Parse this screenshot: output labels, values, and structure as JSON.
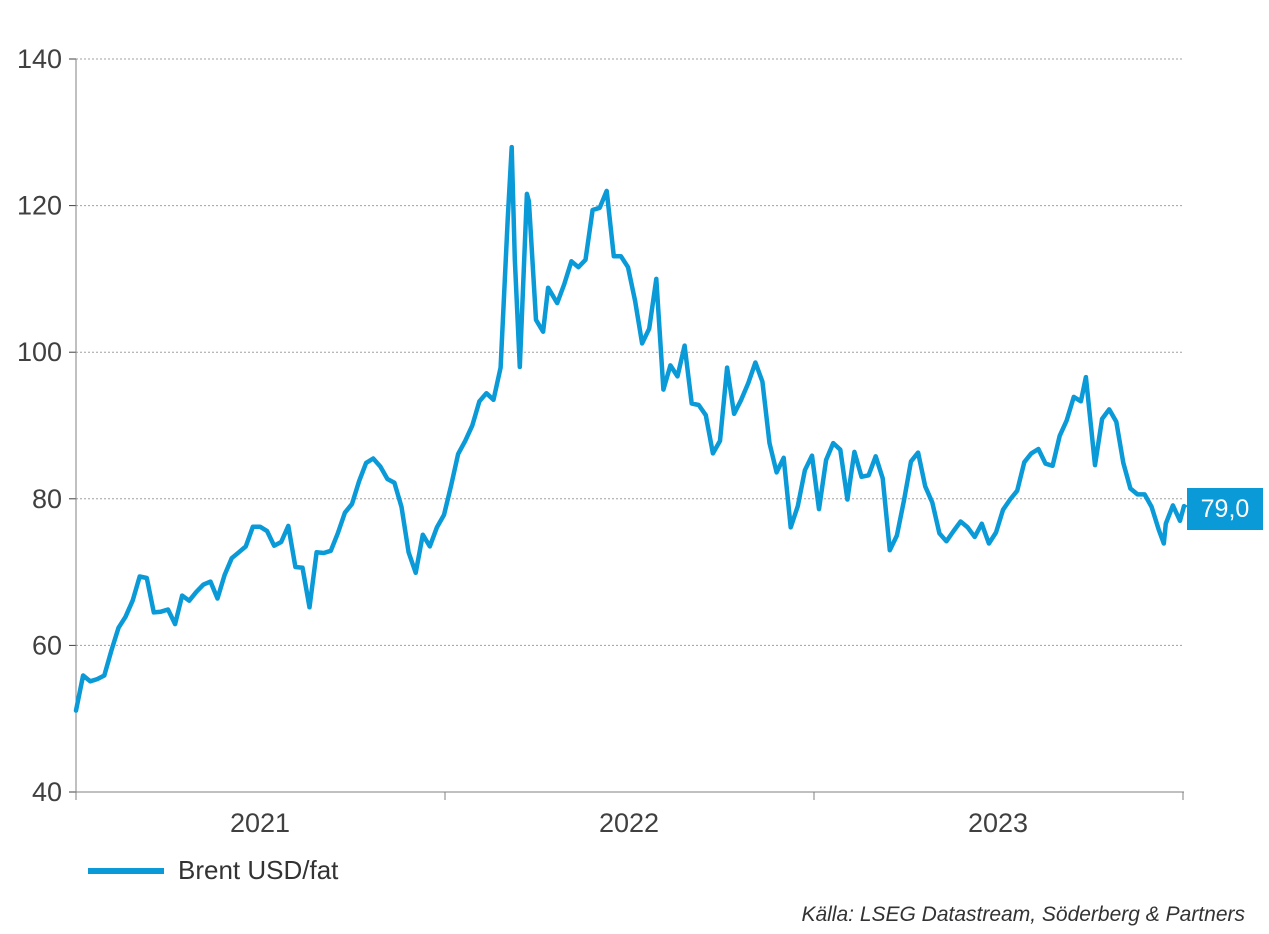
{
  "colors": {
    "series": "#0a9ad8",
    "grid": "#a0a0a0",
    "axis": "#404040"
  },
  "legend": {
    "label": "Brent USD/fat"
  },
  "source": "Källa: LSEG Datastream, Söderberg & Partners",
  "last_value_label": "79,0",
  "chart_data": {
    "type": "line",
    "title": "",
    "xlabel": "",
    "ylabel": "",
    "ylim": [
      40,
      140
    ],
    "yticks": [
      40,
      60,
      80,
      100,
      120,
      140
    ],
    "xlim": [
      "2021-01-01",
      "2024-01-02"
    ],
    "xticks": [
      "2021-01-01",
      "2022-01-01",
      "2023-01-01",
      "2024-01-01"
    ],
    "x_tick_labels": [
      {
        "label": "2021",
        "at": "2021-07-02"
      },
      {
        "label": "2022",
        "at": "2022-07-02"
      },
      {
        "label": "2023",
        "at": "2023-07-02"
      }
    ],
    "grid": "horizontal dotted",
    "legend_position": "bottom-left",
    "series": [
      {
        "name": "Brent USD/fat",
        "points": [
          [
            "2021-01-01",
            51.1
          ],
          [
            "2021-01-08",
            55.9
          ],
          [
            "2021-01-15",
            55.1
          ],
          [
            "2021-01-22",
            55.4
          ],
          [
            "2021-01-29",
            55.9
          ],
          [
            "2021-02-05",
            59.3
          ],
          [
            "2021-02-12",
            62.4
          ],
          [
            "2021-02-19",
            63.9
          ],
          [
            "2021-02-26",
            66.1
          ],
          [
            "2021-03-05",
            69.4
          ],
          [
            "2021-03-12",
            69.2
          ],
          [
            "2021-03-19",
            64.5
          ],
          [
            "2021-03-26",
            64.6
          ],
          [
            "2021-04-02",
            64.9
          ],
          [
            "2021-04-09",
            62.9
          ],
          [
            "2021-04-16",
            66.8
          ],
          [
            "2021-04-23",
            66.1
          ],
          [
            "2021-04-30",
            67.3
          ],
          [
            "2021-05-07",
            68.3
          ],
          [
            "2021-05-14",
            68.7
          ],
          [
            "2021-05-21",
            66.4
          ],
          [
            "2021-05-28",
            69.6
          ],
          [
            "2021-06-04",
            71.9
          ],
          [
            "2021-06-11",
            72.7
          ],
          [
            "2021-06-18",
            73.5
          ],
          [
            "2021-06-25",
            76.2
          ],
          [
            "2021-07-02",
            76.2
          ],
          [
            "2021-07-09",
            75.6
          ],
          [
            "2021-07-16",
            73.6
          ],
          [
            "2021-07-23",
            74.1
          ],
          [
            "2021-07-30",
            76.3
          ],
          [
            "2021-08-06",
            70.7
          ],
          [
            "2021-08-13",
            70.6
          ],
          [
            "2021-08-20",
            65.2
          ],
          [
            "2021-08-27",
            72.7
          ],
          [
            "2021-09-03",
            72.6
          ],
          [
            "2021-09-10",
            72.9
          ],
          [
            "2021-09-17",
            75.3
          ],
          [
            "2021-09-24",
            78.1
          ],
          [
            "2021-10-01",
            79.3
          ],
          [
            "2021-10-08",
            82.4
          ],
          [
            "2021-10-15",
            84.9
          ],
          [
            "2021-10-22",
            85.5
          ],
          [
            "2021-10-29",
            84.4
          ],
          [
            "2021-11-05",
            82.7
          ],
          [
            "2021-11-12",
            82.2
          ],
          [
            "2021-11-19",
            78.9
          ],
          [
            "2021-11-26",
            72.7
          ],
          [
            "2021-12-03",
            69.9
          ],
          [
            "2021-12-10",
            75.1
          ],
          [
            "2021-12-17",
            73.5
          ],
          [
            "2021-12-24",
            76.1
          ],
          [
            "2021-12-31",
            77.8
          ],
          [
            "2022-01-07",
            81.8
          ],
          [
            "2022-01-14",
            86.1
          ],
          [
            "2022-01-21",
            87.9
          ],
          [
            "2022-01-28",
            90.0
          ],
          [
            "2022-02-04",
            93.3
          ],
          [
            "2022-02-11",
            94.4
          ],
          [
            "2022-02-18",
            93.5
          ],
          [
            "2022-02-25",
            97.9
          ],
          [
            "2022-03-04",
            118.1
          ],
          [
            "2022-03-08",
            127.98
          ],
          [
            "2022-03-11",
            112.7
          ],
          [
            "2022-03-16",
            98.0
          ],
          [
            "2022-03-23",
            121.6
          ],
          [
            "2022-03-25",
            120.6
          ],
          [
            "2022-04-01",
            104.4
          ],
          [
            "2022-04-08",
            102.8
          ],
          [
            "2022-04-13",
            108.8
          ],
          [
            "2022-04-22",
            106.7
          ],
          [
            "2022-04-29",
            109.3
          ],
          [
            "2022-05-06",
            112.4
          ],
          [
            "2022-05-13",
            111.6
          ],
          [
            "2022-05-20",
            112.6
          ],
          [
            "2022-05-27",
            119.4
          ],
          [
            "2022-06-03",
            119.7
          ],
          [
            "2022-06-10",
            122.0
          ],
          [
            "2022-06-17",
            113.1
          ],
          [
            "2022-06-24",
            113.1
          ],
          [
            "2022-07-01",
            111.6
          ],
          [
            "2022-07-08",
            107.0
          ],
          [
            "2022-07-15",
            101.2
          ],
          [
            "2022-07-22",
            103.2
          ],
          [
            "2022-07-29",
            110.0
          ],
          [
            "2022-08-05",
            94.9
          ],
          [
            "2022-08-12",
            98.2
          ],
          [
            "2022-08-19",
            96.7
          ],
          [
            "2022-08-26",
            100.9
          ],
          [
            "2022-09-02",
            93.0
          ],
          [
            "2022-09-09",
            92.8
          ],
          [
            "2022-09-16",
            91.4
          ],
          [
            "2022-09-23",
            86.2
          ],
          [
            "2022-09-30",
            87.9
          ],
          [
            "2022-10-07",
            97.9
          ],
          [
            "2022-10-14",
            91.6
          ],
          [
            "2022-10-21",
            93.5
          ],
          [
            "2022-10-28",
            95.8
          ],
          [
            "2022-11-04",
            98.6
          ],
          [
            "2022-11-11",
            95.99
          ],
          [
            "2022-11-18",
            87.6
          ],
          [
            "2022-11-25",
            83.6
          ],
          [
            "2022-12-02",
            85.6
          ],
          [
            "2022-12-09",
            76.1
          ],
          [
            "2022-12-16",
            79.0
          ],
          [
            "2022-12-23",
            83.9
          ],
          [
            "2022-12-30",
            85.9
          ],
          [
            "2023-01-06",
            78.6
          ],
          [
            "2023-01-13",
            85.3
          ],
          [
            "2023-01-20",
            87.6
          ],
          [
            "2023-01-27",
            86.7
          ],
          [
            "2023-02-03",
            79.9
          ],
          [
            "2023-02-10",
            86.4
          ],
          [
            "2023-02-17",
            83.0
          ],
          [
            "2023-02-24",
            83.2
          ],
          [
            "2023-03-03",
            85.8
          ],
          [
            "2023-03-10",
            82.8
          ],
          [
            "2023-03-17",
            72.97
          ],
          [
            "2023-03-24",
            74.99
          ],
          [
            "2023-03-31",
            79.8
          ],
          [
            "2023-04-07",
            85.1
          ],
          [
            "2023-04-14",
            86.3
          ],
          [
            "2023-04-21",
            81.7
          ],
          [
            "2023-04-28",
            79.5
          ],
          [
            "2023-05-05",
            75.3
          ],
          [
            "2023-05-12",
            74.2
          ],
          [
            "2023-05-19",
            75.6
          ],
          [
            "2023-05-26",
            76.9
          ],
          [
            "2023-06-02",
            76.1
          ],
          [
            "2023-06-09",
            74.8
          ],
          [
            "2023-06-16",
            76.6
          ],
          [
            "2023-06-23",
            73.9
          ],
          [
            "2023-06-30",
            75.4
          ],
          [
            "2023-07-07",
            78.5
          ],
          [
            "2023-07-14",
            79.9
          ],
          [
            "2023-07-21",
            81.1
          ],
          [
            "2023-07-28",
            84.99
          ],
          [
            "2023-08-04",
            86.2
          ],
          [
            "2023-08-11",
            86.8
          ],
          [
            "2023-08-18",
            84.8
          ],
          [
            "2023-08-25",
            84.5
          ],
          [
            "2023-09-01",
            88.6
          ],
          [
            "2023-09-08",
            90.7
          ],
          [
            "2023-09-15",
            93.9
          ],
          [
            "2023-09-22",
            93.3
          ],
          [
            "2023-09-27",
            96.6
          ],
          [
            "2023-10-06",
            84.6
          ],
          [
            "2023-10-13",
            90.9
          ],
          [
            "2023-10-20",
            92.2
          ],
          [
            "2023-10-27",
            90.5
          ],
          [
            "2023-11-03",
            84.9
          ],
          [
            "2023-11-10",
            81.4
          ],
          [
            "2023-11-17",
            80.6
          ],
          [
            "2023-11-24",
            80.6
          ],
          [
            "2023-12-01",
            78.9
          ],
          [
            "2023-12-08",
            75.8
          ],
          [
            "2023-12-13",
            73.9
          ],
          [
            "2023-12-15",
            76.6
          ],
          [
            "2023-12-22",
            79.1
          ],
          [
            "2023-12-29",
            77.0
          ],
          [
            "2024-01-02",
            79.0
          ]
        ]
      }
    ],
    "last_value": 79.0
  }
}
